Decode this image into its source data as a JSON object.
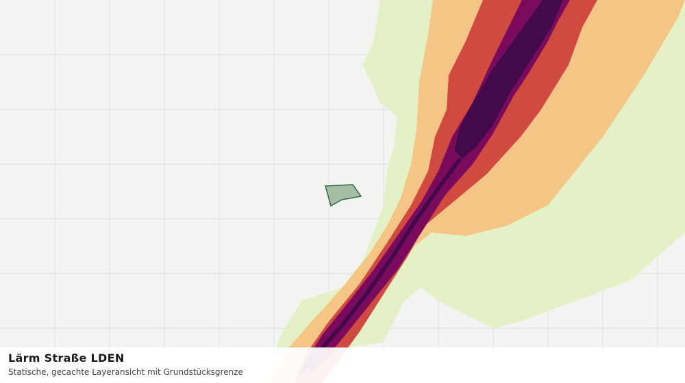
{
  "caption": {
    "title": "Lärm Straße LDEN",
    "subtitle": "Statische, gecachte Layeransicht mit Grundstücksgrenze"
  }
}
